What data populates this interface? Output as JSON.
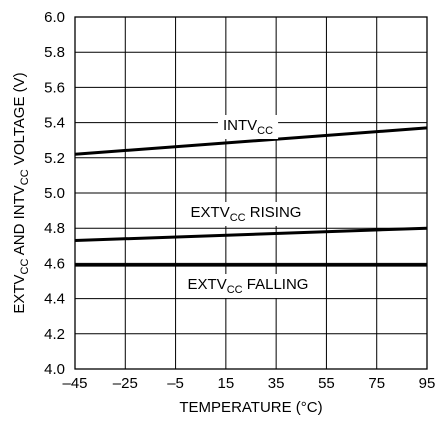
{
  "chart_data": {
    "type": "line",
    "title": "",
    "xlabel": "TEMPERATURE (°C)",
    "ylabel": {
      "parts": [
        "EXTV",
        "CC",
        " AND INTV",
        "CC",
        " VOLTAGE (V)"
      ]
    },
    "xlim": [
      -45,
      95
    ],
    "ylim": [
      4.0,
      6.0
    ],
    "x_ticks": [
      "–45",
      "–25",
      "–5",
      "15",
      "35",
      "55",
      "75",
      "95"
    ],
    "x_tick_values": [
      -45,
      -25,
      -5,
      15,
      35,
      55,
      75,
      95
    ],
    "y_ticks": [
      "4.0",
      "4.2",
      "4.4",
      "4.6",
      "4.8",
      "5.0",
      "5.2",
      "5.4",
      "5.6",
      "5.8",
      "6.0"
    ],
    "y_tick_values": [
      4.0,
      4.2,
      4.4,
      4.6,
      4.8,
      5.0,
      5.2,
      5.4,
      5.6,
      5.8,
      6.0
    ],
    "grid": true,
    "series": [
      {
        "name": "INTVCC",
        "label_parts": [
          "INTV",
          "CC",
          ""
        ],
        "x": [
          -45,
          95
        ],
        "y": [
          5.22,
          5.37
        ]
      },
      {
        "name": "EXTVCC RISING",
        "label_parts": [
          "EXTV",
          "CC",
          " RISING"
        ],
        "x": [
          -45,
          95
        ],
        "y": [
          4.73,
          4.8
        ]
      },
      {
        "name": "EXTVCC FALLING",
        "label_parts": [
          "EXTV",
          "CC",
          " FALLING"
        ],
        "x": [
          -45,
          95
        ],
        "y": [
          4.59,
          4.59
        ]
      }
    ]
  }
}
